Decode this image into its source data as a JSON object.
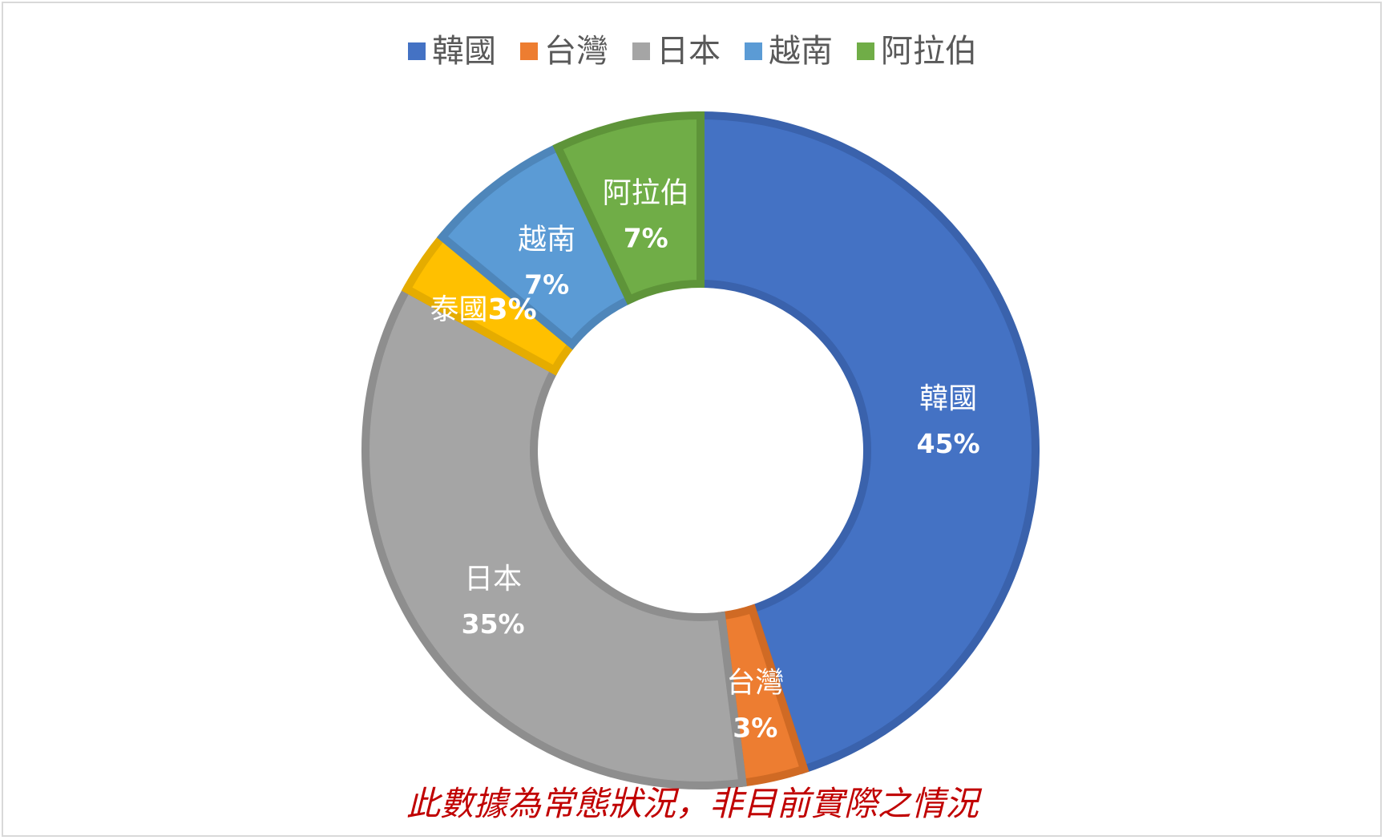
{
  "chart_data": {
    "type": "pie",
    "variant": "donut",
    "categories": [
      "韓國",
      "台灣",
      "日本",
      "泰國",
      "越南",
      "阿拉伯"
    ],
    "values": [
      45,
      3,
      35,
      3,
      7,
      7
    ],
    "value_labels": [
      "45%",
      "3%",
      "35%",
      "3%",
      "7%",
      "7%"
    ],
    "colors": [
      "#4472C4",
      "#ED7D31",
      "#A5A5A5",
      "#FFC000",
      "#5B9BD5",
      "#70AD47"
    ],
    "border_colors": [
      "#3A62AC",
      "#D06A24",
      "#8E8E8E",
      "#E5AC00",
      "#4E86BA",
      "#5E9439"
    ],
    "legend": {
      "position": "top",
      "entries": [
        "韓國",
        "台灣",
        "日本",
        "越南",
        "阿拉伯"
      ],
      "colors": [
        "#4472C4",
        "#ED7D31",
        "#A5A5A5",
        "#5B9BD5",
        "#70AD47"
      ]
    },
    "title": ""
  },
  "note": "此數據為常態狀況，非目前實際之情況"
}
